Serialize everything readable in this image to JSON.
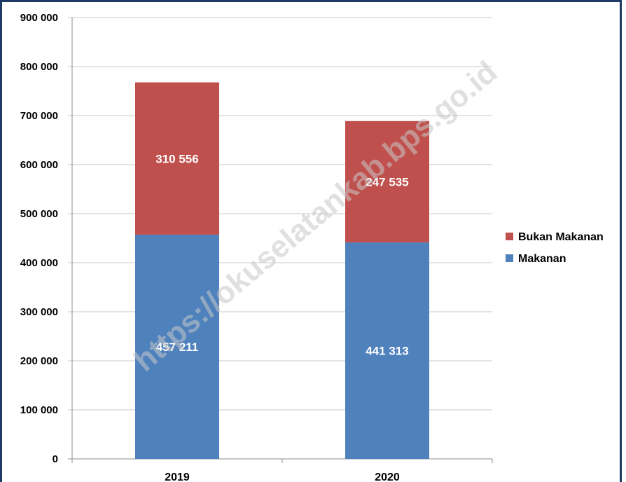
{
  "watermark": "https://okuselatankab.bps.go.id",
  "chart_data": {
    "type": "bar",
    "stacked": true,
    "categories": [
      "2019",
      "2020"
    ],
    "series": [
      {
        "name": "Makanan",
        "values": [
          457211,
          441313
        ],
        "labels": [
          "457 211",
          "441 313"
        ],
        "color": "#4f81bd"
      },
      {
        "name": "Bukan Makanan",
        "values": [
          310556,
          247535
        ],
        "labels": [
          "310 556",
          "247 535"
        ],
        "color": "#c0504d"
      }
    ],
    "ylim": [
      0,
      900000
    ],
    "yticks": [
      0,
      100000,
      200000,
      300000,
      400000,
      500000,
      600000,
      700000,
      800000,
      900000
    ],
    "ytick_labels": [
      "0",
      "100 000",
      "200 000",
      "300 000",
      "400 000",
      "500 000",
      "600 000",
      "700 000",
      "800 000",
      "900 000"
    ],
    "grid": true,
    "legend_position": "right",
    "legend_order": [
      "Bukan Makanan",
      "Makanan"
    ]
  }
}
